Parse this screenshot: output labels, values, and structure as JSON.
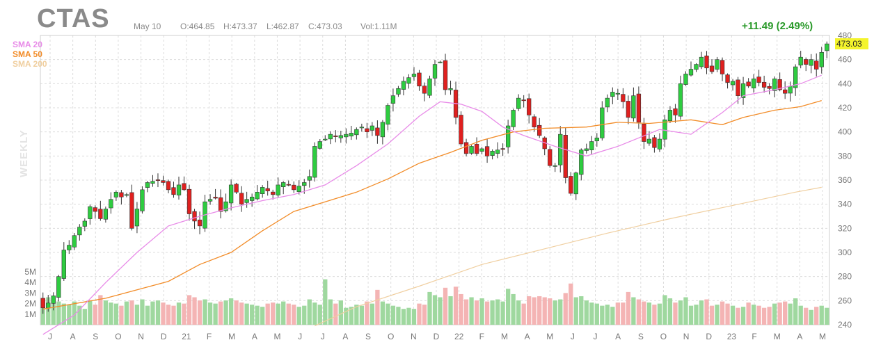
{
  "header": {
    "ticker": "CTAS",
    "date": "May 10",
    "open": "O:464.85",
    "high": "H:473.37",
    "low": "L:462.87",
    "close": "C:473.03",
    "volume": "Vol:1.11M",
    "change": "+11.49 (2.49%)",
    "last_price": "473.03"
  },
  "legend": [
    {
      "label": "SMA 20",
      "color": "#e88be8"
    },
    {
      "label": "SMA 50",
      "color": "#f28c28"
    },
    {
      "label": "SMA 200",
      "color": "#f0cfa0"
    }
  ],
  "period_label": "WEEKLY",
  "colors": {
    "up": "#2ecc40",
    "down": "#e0201f",
    "vol_up": "#9fd89f",
    "vol_down": "#f4b4b4",
    "grid": "#dcdcdc",
    "highlight": "#f4f42c"
  },
  "chart_data": {
    "type": "candlestick",
    "ylim": [
      240,
      480
    ],
    "y_ticks": [
      240,
      260,
      280,
      300,
      320,
      340,
      360,
      380,
      400,
      420,
      440,
      460,
      480
    ],
    "volume_ticks": [
      "1M",
      "2M",
      "3M",
      "4M",
      "5M"
    ],
    "x_tick_labels": [
      "J",
      "A",
      "S",
      "O",
      "N",
      "D",
      "21",
      "F",
      "M",
      "A",
      "M",
      "J",
      "J",
      "A",
      "S",
      "O",
      "N",
      "D",
      "22",
      "F",
      "M",
      "A",
      "M",
      "J",
      "J",
      "A",
      "S",
      "O",
      "N",
      "D",
      "23",
      "F",
      "M",
      "A",
      "M"
    ],
    "closes": [
      254,
      258,
      264,
      280,
      302,
      306,
      314,
      321,
      326,
      338,
      334,
      328,
      336,
      344,
      350,
      346,
      348,
      320,
      336,
      352,
      358,
      359,
      360,
      358,
      352,
      348,
      356,
      352,
      332,
      326,
      322,
      342,
      344,
      345,
      334,
      342,
      356,
      350,
      340,
      344,
      346,
      350,
      354,
      351,
      348,
      356,
      358,
      356,
      352,
      355,
      358,
      363,
      388,
      392,
      394,
      398,
      396,
      397,
      398,
      399,
      402,
      404,
      400,
      405,
      397,
      408,
      422,
      430,
      436,
      442,
      445,
      448,
      438,
      432,
      444,
      456,
      458,
      435,
      436,
      412,
      390,
      382,
      388,
      382,
      386,
      380,
      384,
      385,
      386,
      405,
      418,
      428,
      426,
      414,
      404,
      397,
      386,
      372,
      372,
      398,
      362,
      349,
      366,
      385,
      386,
      392,
      395,
      420,
      428,
      433,
      432,
      425,
      412,
      430,
      408,
      392,
      394,
      387,
      394,
      410,
      418,
      414,
      440,
      448,
      452,
      456,
      462,
      453,
      450,
      460,
      448,
      441,
      442,
      430,
      440,
      438,
      444,
      441,
      437,
      436,
      444,
      435,
      432,
      438,
      454,
      462,
      456,
      460,
      452,
      466,
      473.03
    ],
    "volumes_m": [
      2.5,
      2.6,
      2.4,
      2.2,
      2.0,
      1.9,
      2.2,
      1.8,
      1.5,
      2.3,
      1.9,
      2.8,
      2.3,
      2.1,
      2.0,
      1.8,
      2.2,
      2.3,
      1.9,
      2.4,
      1.8,
      2.2,
      2.3,
      2.1,
      1.9,
      1.8,
      2.1,
      2.0,
      2.8,
      2.6,
      2.3,
      2.4,
      2.1,
      2.0,
      2.2,
      2.3,
      2.5,
      2.3,
      2.1,
      2.0,
      1.9,
      1.8,
      1.7,
      2.0,
      2.1,
      2.0,
      2.2,
      2.0,
      1.9,
      1.7,
      1.8,
      2.4,
      2.1,
      1.9,
      4.3,
      2.4,
      2.0,
      2.3,
      1.6,
      1.7,
      1.9,
      1.8,
      2.2,
      2.0,
      3.3,
      2.2,
      2.0,
      1.8,
      1.7,
      1.5,
      1.6,
      1.5,
      2.0,
      1.9,
      3.1,
      2.8,
      2.6,
      3.5,
      2.7,
      3.6,
      2.9,
      2.4,
      2.6,
      2.3,
      2.5,
      2.2,
      2.3,
      2.4,
      2.2,
      3.4,
      2.9,
      2.3,
      2.0,
      2.7,
      2.6,
      2.7,
      2.6,
      2.5,
      2.3,
      2.4,
      3.0,
      3.9,
      2.6,
      2.7,
      2.3,
      2.1,
      2.0,
      1.8,
      1.9,
      1.7,
      2.1,
      2.1,
      3.1,
      2.6,
      2.4,
      2.2,
      2.1,
      1.9,
      2.0,
      2.8,
      2.5,
      2.1,
      2.3,
      2.6,
      1.8,
      1.9,
      2.3,
      2.4,
      1.8,
      1.9,
      2.2,
      2.0,
      1.8,
      1.6,
      1.7,
      2.1,
      1.9,
      1.8,
      1.6,
      1.7,
      2.0,
      2.1,
      2.2,
      2.0,
      2.5,
      1.8,
      1.6,
      1.4,
      1.7,
      1.8,
      1.6
    ],
    "sma20_points": [
      [
        0,
        232
      ],
      [
        6,
        248
      ],
      [
        12,
        275
      ],
      [
        18,
        300
      ],
      [
        24,
        322
      ],
      [
        30,
        330
      ],
      [
        36,
        337
      ],
      [
        42,
        343
      ],
      [
        48,
        348
      ],
      [
        54,
        356
      ],
      [
        60,
        372
      ],
      [
        66,
        390
      ],
      [
        72,
        413
      ],
      [
        76,
        425
      ],
      [
        80,
        423
      ],
      [
        84,
        417
      ],
      [
        88,
        404
      ],
      [
        92,
        397
      ],
      [
        98,
        388
      ],
      [
        104,
        380
      ],
      [
        110,
        388
      ],
      [
        118,
        402
      ],
      [
        124,
        398
      ],
      [
        130,
        416
      ],
      [
        134,
        430
      ],
      [
        140,
        435
      ],
      [
        145,
        440
      ],
      [
        149,
        447
      ]
    ],
    "sma50_points": [
      [
        0,
        253
      ],
      [
        12,
        262
      ],
      [
        24,
        276
      ],
      [
        30,
        290
      ],
      [
        36,
        300
      ],
      [
        42,
        318
      ],
      [
        48,
        334
      ],
      [
        54,
        342
      ],
      [
        60,
        350
      ],
      [
        66,
        361
      ],
      [
        72,
        374
      ],
      [
        78,
        383
      ],
      [
        84,
        393
      ],
      [
        90,
        400
      ],
      [
        96,
        403
      ],
      [
        104,
        404
      ],
      [
        110,
        408
      ],
      [
        116,
        407
      ],
      [
        124,
        410
      ],
      [
        130,
        406
      ],
      [
        134,
        412
      ],
      [
        140,
        418
      ],
      [
        145,
        421
      ],
      [
        149,
        426
      ]
    ],
    "sma200_points": [
      [
        52,
        239
      ],
      [
        60,
        255
      ],
      [
        72,
        272
      ],
      [
        84,
        290
      ],
      [
        96,
        303
      ],
      [
        108,
        316
      ],
      [
        120,
        328
      ],
      [
        132,
        339
      ],
      [
        144,
        350
      ],
      [
        149,
        354
      ]
    ]
  }
}
